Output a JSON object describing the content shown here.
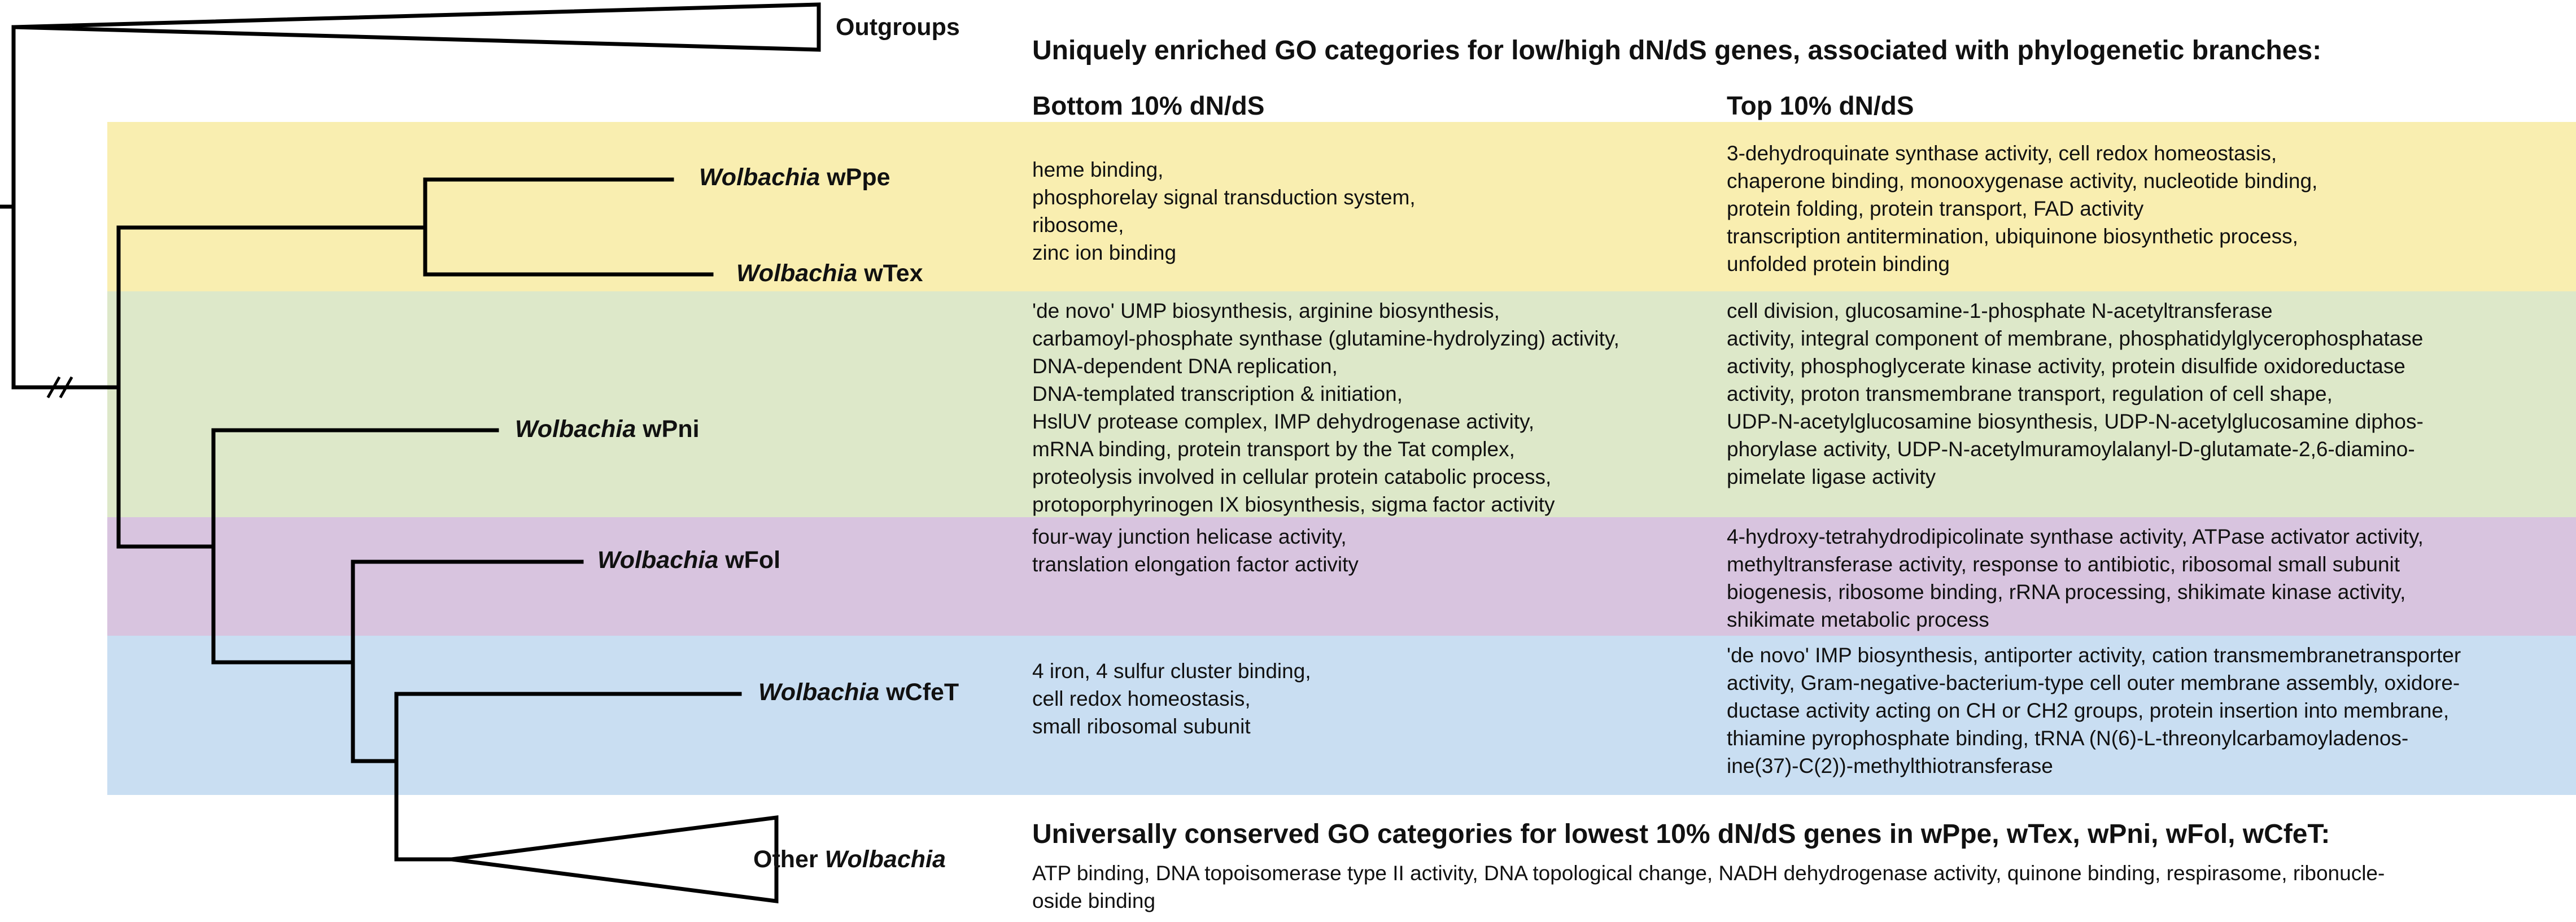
{
  "tree": {
    "outgroups_label": "Outgroups",
    "leaves": [
      {
        "genus": "Wolbachia",
        "strain": "wPpe"
      },
      {
        "genus": "Wolbachia",
        "strain": "wTex"
      },
      {
        "genus": "Wolbachia",
        "strain": "wPni"
      },
      {
        "genus": "Wolbachia",
        "strain": "wFol"
      },
      {
        "genus": "Wolbachia",
        "strain": "wCfeT"
      }
    ],
    "other_label_prefix": "Other",
    "other_label_genus": "Wolbachia"
  },
  "header": {
    "title": "Uniquely enriched GO categories for low/high dN/dS genes, associated with phylogenetic branches:",
    "bottom_col": "Bottom 10% dN/dS",
    "top_col": "Top 10% dN/dS"
  },
  "rows": [
    {
      "bottom": "heme binding,\nphosphorelay signal transduction system,\nribosome,\nzinc ion binding",
      "top": "3-dehydroquinate synthase activity, cell redox homeostasis,\nchaperone binding, monooxygenase activity, nucleotide binding,\nprotein folding, protein transport, FAD activity\ntranscription antitermination, ubiquinone biosynthetic process,\nunfolded protein binding"
    },
    {
      "bottom": "'de novo' UMP biosynthesis, arginine biosynthesis,\ncarbamoyl-phosphate synthase (glutamine-hydrolyzing) activity,\nDNA-dependent DNA replication,\nDNA-templated transcription & initiation,\nHslUV protease complex, IMP dehydrogenase activity,\nmRNA binding, protein transport by the Tat complex,\nproteolysis involved in cellular protein catabolic process,\nprotoporphyrinogen IX biosynthesis, sigma factor activity",
      "top": "cell division, glucosamine-1-phosphate N-acetyltransferase\nactivity, integral component of membrane, phosphatidylglycerophosphatase\nactivity, phosphoglycerate kinase activity, protein disulfide oxidoreductase\nactivity, proton transmembrane transport, regulation of cell shape,\nUDP-N-acetylglucosamine biosynthesis, UDP-N-acetylglucosamine diphos-\nphorylase activity, UDP-N-acetylmuramoylalanyl-D-glutamate-2,6-diamino-\npimelate ligase activity"
    },
    {
      "bottom": "four-way junction helicase activity,\ntranslation elongation factor activity",
      "top": "4-hydroxy-tetrahydrodipicolinate synthase activity, ATPase activator activity,\nmethyltransferase activity, response to antibiotic, ribosomal small subunit\nbiogenesis, ribosome binding, rRNA processing, shikimate kinase activity,\nshikimate metabolic process"
    },
    {
      "bottom": "4 iron, 4 sulfur cluster binding,\ncell redox homeostasis,\nsmall ribosomal subunit",
      "top": "'de novo' IMP biosynthesis, antiporter activity, cation transmembranetransporter\nactivity, Gram-negative-bacterium-type cell outer membrane assembly, oxidore-\nductase activity acting on CH or CH2 groups, protein insertion into membrane,\nthiamine pyrophosphate binding, tRNA (N(6)-L-threonylcarbamoyladenos-\nine(37)-C(2))-methylthiotransferase"
    }
  ],
  "conserved": {
    "title": "Universally conserved GO categories for lowest 10% dN/dS genes in wPpe, wTex, wPni, wFol, wCfeT:",
    "text": "ATP binding, DNA topoisomerase type II activity, DNA topological change, NADH dehydrogenase activity, quinone binding, respirasome, ribonucle-\noside binding"
  },
  "colors": {
    "band_yellow": "#f9eeb0",
    "band_green": "#dde8c9",
    "band_purple": "#d8c4df",
    "band_blue": "#c9def2"
  }
}
